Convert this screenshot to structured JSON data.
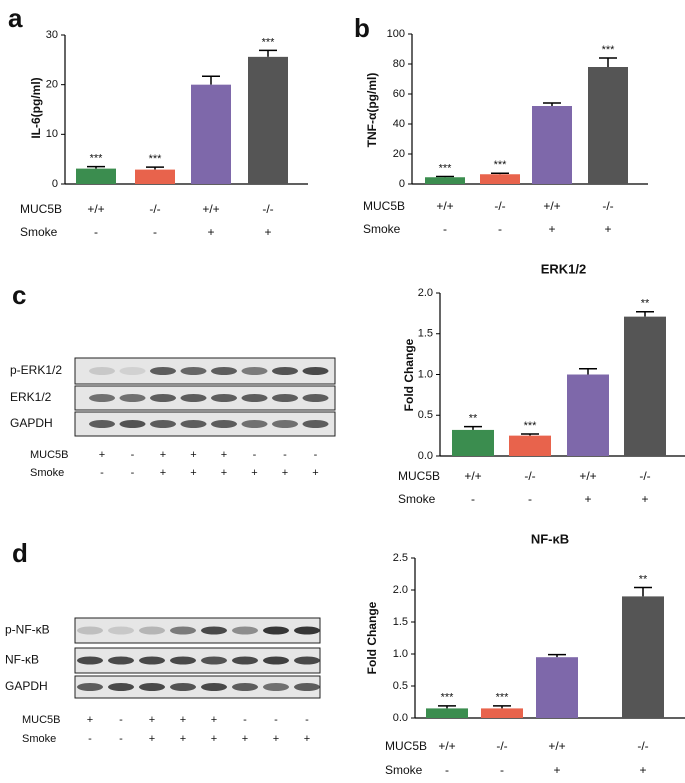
{
  "chart_data": [
    {
      "type": "bar",
      "panel": "a",
      "ylabel": "IL-6(pg/ml)",
      "values": [
        3.1,
        2.9,
        20,
        25.6
      ],
      "errors": [
        0.4,
        0.5,
        1.7,
        1.3
      ],
      "colors": [
        "#3b8d4f",
        "#e8634c",
        "#7e68aa",
        "#555555"
      ],
      "annotations": [
        "***",
        "***",
        null,
        "***"
      ],
      "condition_rows": [
        {
          "name": "MUC5B",
          "labels": [
            "+/+",
            "-/-",
            "+/+",
            "-/-"
          ]
        },
        {
          "name": "Smoke",
          "labels": [
            "-",
            "-",
            "+",
            "+"
          ]
        }
      ],
      "ylim": [
        0,
        30
      ],
      "yticks": [
        0,
        10,
        20,
        30
      ]
    },
    {
      "type": "bar",
      "panel": "b",
      "ylabel": "TNF-α(pg/ml)",
      "values": [
        4.5,
        6.5,
        52,
        78
      ],
      "errors": [
        0.5,
        0.7,
        2,
        6
      ],
      "colors": [
        "#3b8d4f",
        "#e8634c",
        "#7e68aa",
        "#555555"
      ],
      "annotations": [
        "***",
        "***",
        null,
        "***"
      ],
      "condition_rows": [
        {
          "name": "MUC5B",
          "labels": [
            "+/+",
            "-/-",
            "+/+",
            "-/-"
          ]
        },
        {
          "name": "Smoke",
          "labels": [
            "-",
            "-",
            "+",
            "+"
          ]
        }
      ],
      "ylim": [
        0,
        100
      ],
      "yticks": [
        0,
        20,
        40,
        60,
        80,
        100
      ]
    },
    {
      "type": "bar",
      "title": "ERK1/2",
      "ylabel": "Fold Change",
      "values": [
        0.32,
        0.25,
        1.0,
        1.71
      ],
      "errors": [
        0.04,
        0.02,
        0.07,
        0.06
      ],
      "colors": [
        "#3b8d4f",
        "#e8634c",
        "#7e68aa",
        "#555555"
      ],
      "annotations": [
        "**",
        "***",
        null,
        "**"
      ],
      "condition_rows": [
        {
          "name": "MUC5B",
          "labels": [
            "+/+",
            "-/-",
            "+/+",
            "-/-"
          ]
        },
        {
          "name": "Smoke",
          "labels": [
            "-",
            "-",
            "+",
            "+"
          ]
        }
      ],
      "ylim": [
        0,
        2
      ],
      "yticks": [
        {
          "value": 0,
          "label": "0.0"
        },
        0.5,
        {
          "value": 1,
          "label": "1.0"
        },
        1.5,
        {
          "value": 2,
          "label": "2.0"
        }
      ]
    },
    {
      "type": "bar",
      "title": "NF-κB",
      "ylabel": "Fold Change",
      "values": [
        0.15,
        0.15,
        0.95,
        1.9
      ],
      "errors": [
        0.04,
        0.04,
        0.04,
        0.14
      ],
      "colors": [
        "#3b8d4f",
        "#e8634c",
        "#7e68aa",
        "#555555"
      ],
      "annotations": [
        "***",
        "***",
        null,
        "**"
      ],
      "condition_rows": [
        {
          "name": "MUC5B",
          "labels": [
            "+/+",
            "-/-",
            "+/+",
            "-/-"
          ]
        },
        {
          "name": "Smoke",
          "labels": [
            "-",
            "-",
            "+",
            "+"
          ]
        }
      ],
      "ylim": [
        0,
        2.5
      ],
      "yticks": [
        {
          "value": 0,
          "label": "0.0"
        },
        0.5,
        {
          "value": 1,
          "label": "1.0"
        },
        1.5,
        {
          "value": 2,
          "label": "2.0"
        },
        2.5
      ]
    }
  ],
  "blots": [
    {
      "panel": "c",
      "rows": [
        "p-ERK1/2",
        "ERK1/2",
        "GAPDH"
      ],
      "conditions": [
        {
          "name": "MUC5B",
          "labels": [
            "+",
            "-",
            "+",
            "+",
            "+",
            "-",
            "-",
            "-"
          ]
        },
        {
          "name": "Smoke",
          "labels": [
            "-",
            "-",
            "+",
            "+",
            "+",
            "+",
            "+",
            "+"
          ]
        }
      ]
    },
    {
      "panel": "d",
      "rows": [
        "p-NF-κB",
        "NF-κB",
        "GAPDH"
      ],
      "conditions": [
        {
          "name": "MUC5B",
          "labels": [
            "+",
            "-",
            "+",
            "+",
            "+",
            "-",
            "-",
            "-"
          ]
        },
        {
          "name": "Smoke",
          "labels": [
            "-",
            "-",
            "+",
            "+",
            "+",
            "+",
            "+",
            "+"
          ]
        }
      ]
    }
  ]
}
